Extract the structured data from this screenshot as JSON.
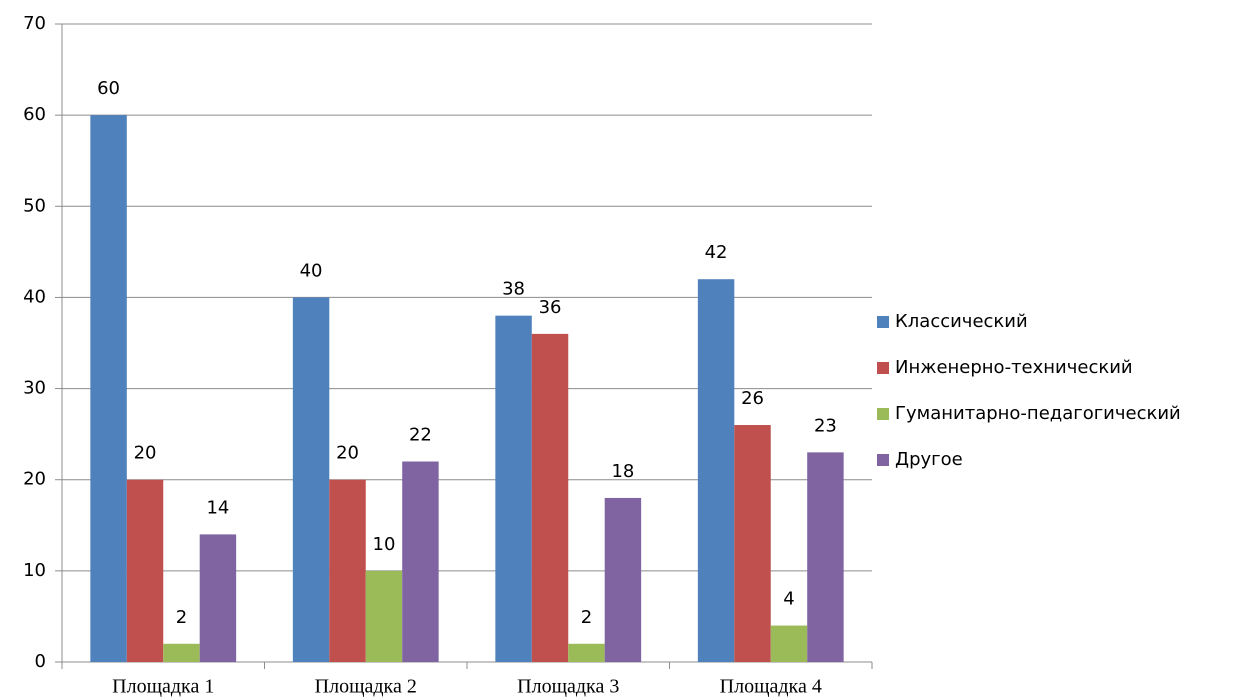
{
  "chart_data": {
    "type": "bar",
    "categories": [
      "Площадка 1",
      "Площадка 2",
      "Площадка 3",
      "Площадка 4"
    ],
    "series": [
      {
        "name": "Классический",
        "color": "#4f81bd",
        "values": [
          60,
          40,
          38,
          42
        ]
      },
      {
        "name": "Инженерно-технический",
        "color": "#c0504d",
        "values": [
          20,
          20,
          36,
          26
        ]
      },
      {
        "name": "Гуманитарно-педагогический",
        "color": "#9bbb59",
        "values": [
          2,
          10,
          2,
          4
        ]
      },
      {
        "name": "Другое",
        "color": "#8064a2",
        "values": [
          14,
          22,
          18,
          23
        ]
      }
    ],
    "ylim": [
      0,
      70
    ],
    "yticks": [
      0,
      10,
      20,
      30,
      40,
      50,
      60,
      70
    ],
    "grid": true,
    "legend": "right"
  }
}
